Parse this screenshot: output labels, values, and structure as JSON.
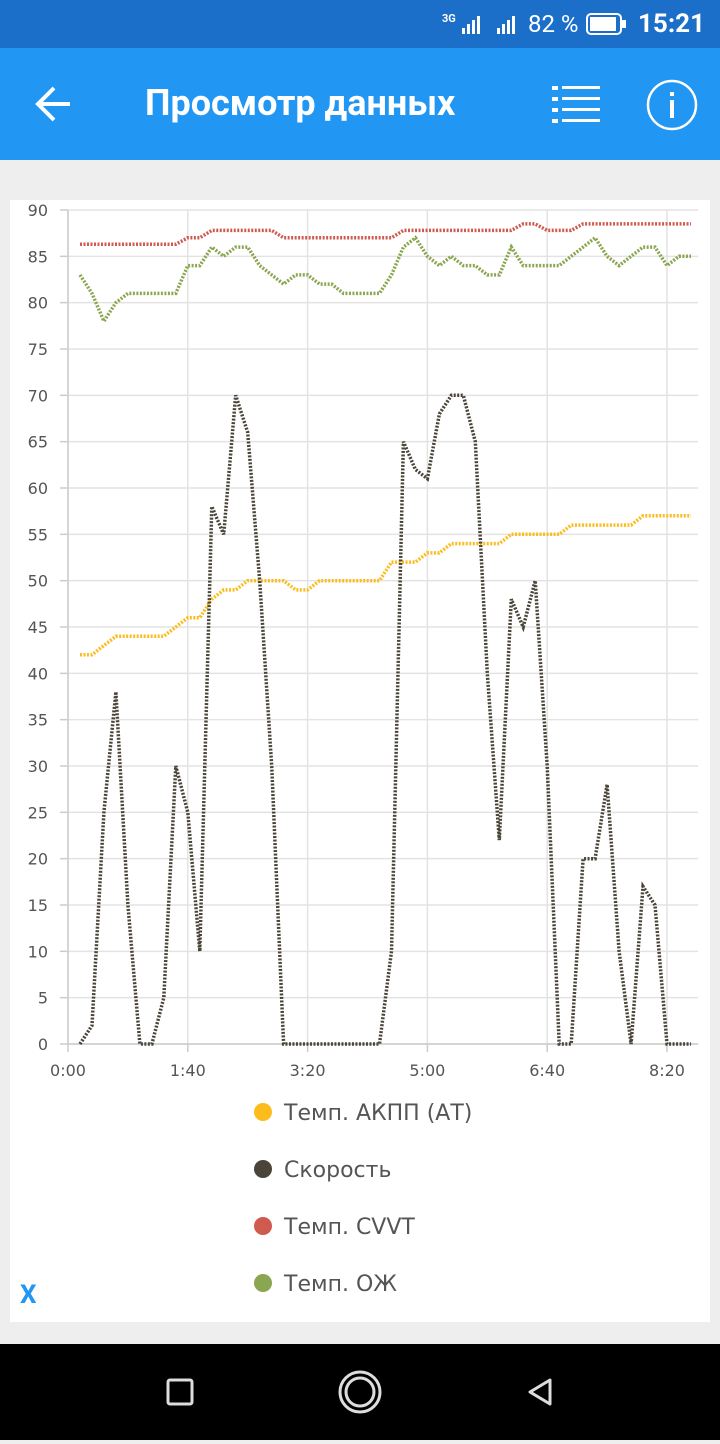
{
  "status_bar": {
    "network": "3G",
    "battery": "82 %",
    "time": "15:21"
  },
  "app_bar": {
    "title": "Просмотр данных"
  },
  "close_label": "X",
  "chart_data": {
    "type": "line",
    "x": [
      10,
      20,
      30,
      40,
      50,
      60,
      70,
      80,
      90,
      100,
      110,
      120,
      130,
      140,
      150,
      160,
      170,
      180,
      190,
      200,
      210,
      220,
      230,
      240,
      250,
      260,
      270,
      280,
      290,
      300,
      310,
      320,
      330,
      340,
      350,
      360,
      370,
      380,
      390,
      400,
      410,
      420,
      430,
      440,
      450,
      460,
      470,
      480,
      490,
      500,
      510,
      520
    ],
    "xlim": [
      0,
      526
    ],
    "xticks": [
      {
        "value": 0,
        "label": "0:00"
      },
      {
        "value": 100,
        "label": "1:40"
      },
      {
        "value": 200,
        "label": "3:20"
      },
      {
        "value": 300,
        "label": "5:00"
      },
      {
        "value": 400,
        "label": "6:40"
      },
      {
        "value": 500,
        "label": "8:20"
      }
    ],
    "ylim": [
      0,
      90
    ],
    "yticks": [
      0,
      5,
      10,
      15,
      20,
      25,
      30,
      35,
      40,
      45,
      50,
      55,
      60,
      65,
      70,
      75,
      80,
      85,
      90
    ],
    "grid": true,
    "series": [
      {
        "name": "Темп. АКПП (АТ)",
        "color": "#fbbc1c",
        "values": [
          42,
          42,
          43,
          44,
          44,
          44,
          44,
          44,
          45,
          46,
          46,
          48,
          49,
          49,
          50,
          50,
          50,
          50,
          49,
          49,
          50,
          50,
          50,
          50,
          50,
          50,
          52,
          52,
          52,
          53,
          53,
          54,
          54,
          54,
          54,
          54,
          55,
          55,
          55,
          55,
          55,
          56,
          56,
          56,
          56,
          56,
          56,
          57,
          57,
          57,
          57,
          57
        ]
      },
      {
        "name": "Скорость",
        "color": "#4a4538",
        "values": [
          0,
          2,
          25,
          38,
          15,
          0,
          0,
          5,
          30,
          25,
          10,
          58,
          55,
          70,
          66,
          50,
          30,
          0,
          0,
          0,
          0,
          0,
          0,
          0,
          0,
          0,
          10,
          65,
          62,
          61,
          68,
          70,
          70,
          65,
          40,
          22,
          48,
          45,
          50,
          30,
          0,
          0,
          20,
          20,
          28,
          10,
          0,
          17,
          15,
          0,
          0,
          0
        ]
      },
      {
        "name": "Темп. CVVT",
        "color": "#cf5a4e",
        "values": [
          86.3,
          86.3,
          86.3,
          86.3,
          86.3,
          86.3,
          86.3,
          86.3,
          86.3,
          87,
          87,
          87.8,
          87.8,
          87.8,
          87.8,
          87.8,
          87.8,
          87,
          87,
          87,
          87,
          87,
          87,
          87,
          87,
          87,
          87,
          87.8,
          87.8,
          87.8,
          87.8,
          87.8,
          87.8,
          87.8,
          87.8,
          87.8,
          87.8,
          88.5,
          88.5,
          87.8,
          87.8,
          87.8,
          88.5,
          88.5,
          88.5,
          88.5,
          88.5,
          88.5,
          88.5,
          88.5,
          88.5,
          88.5
        ]
      },
      {
        "name": "Темп. ОЖ",
        "color": "#8aa650",
        "values": [
          83,
          81,
          78,
          80,
          81,
          81,
          81,
          81,
          81,
          84,
          84,
          86,
          85,
          86,
          86,
          84,
          83,
          82,
          83,
          83,
          82,
          82,
          81,
          81,
          81,
          81,
          83,
          86,
          87,
          85,
          84,
          85,
          84,
          84,
          83,
          83,
          86,
          84,
          84,
          84,
          84,
          85,
          86,
          87,
          85,
          84,
          85,
          86,
          86,
          84,
          85,
          85
        ]
      }
    ]
  }
}
